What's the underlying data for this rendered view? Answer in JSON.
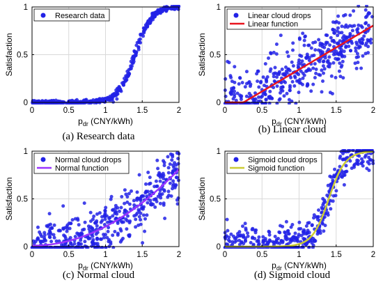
{
  "colors": {
    "dots": "#2222e6",
    "grid": "#d9d9d9",
    "linear_function": "#e8141e",
    "normal_function": "#9933ff",
    "sigmoid_function": "#cccc33"
  },
  "chart_data": [
    {
      "type": "scatter",
      "caption": "(a) Research data",
      "xlabel_main": "p",
      "xlabel_sub": "dr",
      "xlabel_unit": " (CNY/kWh)",
      "ylabel": "Satisfaction",
      "xlim": [
        0,
        2
      ],
      "ylim": [
        0,
        1
      ],
      "xticks": [
        "0",
        "0.5",
        "1",
        "1.5",
        "2"
      ],
      "yticks": [
        "0",
        "0.5",
        "1"
      ],
      "grid": true,
      "legend_position": "top-left",
      "series": [
        {
          "name": "Research data",
          "kind": "points",
          "model": "sigmoid",
          "noise": 0.04
        }
      ]
    },
    {
      "type": "scatter",
      "caption": "(b) Linear cloud",
      "xlabel_main": "p",
      "xlabel_sub": "dr",
      "xlabel_unit": " (CNY/kWh)",
      "ylabel": "Satisfaction",
      "xlim": [
        0,
        2
      ],
      "ylim": [
        0,
        1
      ],
      "xticks": [
        "0",
        "0.5",
        "1",
        "1.5",
        "2"
      ],
      "yticks": [
        "0",
        "0.5",
        "1"
      ],
      "grid": true,
      "legend_position": "top-left",
      "series": [
        {
          "name": "Linear cloud drops",
          "kind": "points",
          "model": "linear",
          "noise": 0.15
        },
        {
          "name": "Linear function",
          "kind": "line",
          "model": "linear",
          "color_key": "linear_function"
        }
      ]
    },
    {
      "type": "scatter",
      "caption": "(c) Normal cloud",
      "xlabel_main": "p",
      "xlabel_sub": "dr",
      "xlabel_unit": " (CNY/kWh)",
      "ylabel": "Satisfaction",
      "xlim": [
        0,
        2
      ],
      "ylim": [
        0,
        1
      ],
      "xticks": [
        "0",
        "0.5",
        "1",
        "1.5",
        "2"
      ],
      "yticks": [
        "0",
        "0.5",
        "1"
      ],
      "grid": true,
      "legend_position": "top-left",
      "series": [
        {
          "name": "Normal cloud drops",
          "kind": "points",
          "model": "normal",
          "noise": 0.13
        },
        {
          "name": "Normal function",
          "kind": "line",
          "model": "normal",
          "color_key": "normal_function"
        }
      ]
    },
    {
      "type": "scatter",
      "caption": "(d) Sigmoid cloud",
      "xlabel_main": "p",
      "xlabel_sub": "dr",
      "xlabel_unit": " (CNY/kWh)",
      "ylabel": "Satisfaction",
      "xlim": [
        0,
        2
      ],
      "ylim": [
        0,
        1
      ],
      "xticks": [
        "0",
        "0.5",
        "1",
        "1.5",
        "2"
      ],
      "yticks": [
        "0",
        "0.5",
        "1"
      ],
      "grid": true,
      "legend_position": "top-left",
      "series": [
        {
          "name": "Sigmoid cloud drops",
          "kind": "points",
          "model": "sigmoid",
          "noise": 0.1
        },
        {
          "name": "Sigmoid function",
          "kind": "line",
          "model": "sigmoid",
          "color_key": "sigmoid_function"
        }
      ]
    }
  ]
}
